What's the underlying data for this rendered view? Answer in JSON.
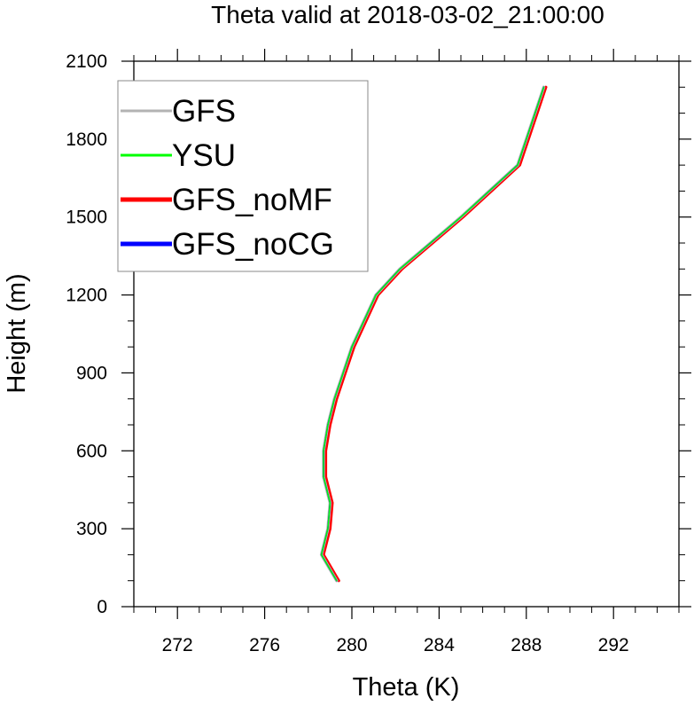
{
  "chart_data": {
    "type": "line",
    "title": "Theta valid at 2018-03-02_21:00:00",
    "xlabel": "Theta (K)",
    "ylabel": "Height (m)",
    "xlim": [
      270,
      295
    ],
    "ylim": [
      0,
      2100
    ],
    "xticks": [
      272,
      276,
      280,
      284,
      288,
      292
    ],
    "xtick_labels": [
      "272",
      "276",
      "280",
      "284",
      "288",
      "292"
    ],
    "yticks": [
      0,
      300,
      600,
      900,
      1200,
      1500,
      1800,
      2100
    ],
    "ytick_labels": [
      "0",
      "300",
      "600",
      "900",
      "1200",
      "1500",
      "1800",
      "2100"
    ],
    "x_minor_step": 1,
    "y_minor_step": 100,
    "grid": false,
    "legend_position": "top-left",
    "series": [
      {
        "name": "GFS",
        "color": "#b3b3b3",
        "x": [
          279.3,
          278.6,
          278.9,
          279.0,
          278.7,
          278.7,
          278.9,
          279.2,
          279.6,
          280.0,
          281.1,
          282.2,
          283.6,
          285.0,
          286.3,
          287.6,
          288.8
        ],
        "y": [
          100,
          200,
          300,
          400,
          500,
          600,
          700,
          800,
          900,
          1000,
          1200,
          1300,
          1400,
          1500,
          1600,
          1700,
          2000
        ]
      },
      {
        "name": "YSU",
        "color": "#00ff00",
        "x": [
          279.3,
          278.6,
          278.9,
          279.0,
          278.7,
          278.7,
          278.9,
          279.2,
          279.6,
          280.0,
          281.1,
          282.2,
          283.6,
          285.0,
          286.3,
          287.6,
          288.8
        ],
        "y": [
          100,
          200,
          300,
          400,
          500,
          600,
          700,
          800,
          900,
          1000,
          1200,
          1300,
          1400,
          1500,
          1600,
          1700,
          2000
        ]
      },
      {
        "name": "GFS_noMF",
        "color": "#ff0000",
        "x": [
          279.4,
          278.7,
          279.0,
          279.1,
          278.8,
          278.8,
          279.0,
          279.3,
          279.7,
          280.1,
          281.2,
          282.3,
          283.7,
          285.1,
          286.4,
          287.7,
          288.9
        ],
        "y": [
          100,
          200,
          300,
          400,
          500,
          600,
          700,
          800,
          900,
          1000,
          1200,
          1300,
          1400,
          1500,
          1600,
          1700,
          2000
        ]
      },
      {
        "name": "GFS_noCG",
        "color": "#0000ff",
        "x": [
          279.3,
          278.6,
          278.9,
          279.0,
          278.7,
          278.7,
          278.9,
          279.2,
          279.6,
          280.0,
          281.1,
          282.2,
          283.6,
          285.0,
          286.3,
          287.6,
          288.8
        ],
        "y": [
          100,
          200,
          300,
          400,
          500,
          600,
          700,
          800,
          900,
          1000,
          1200,
          1300,
          1400,
          1500,
          1600,
          1700,
          2000
        ]
      }
    ]
  }
}
